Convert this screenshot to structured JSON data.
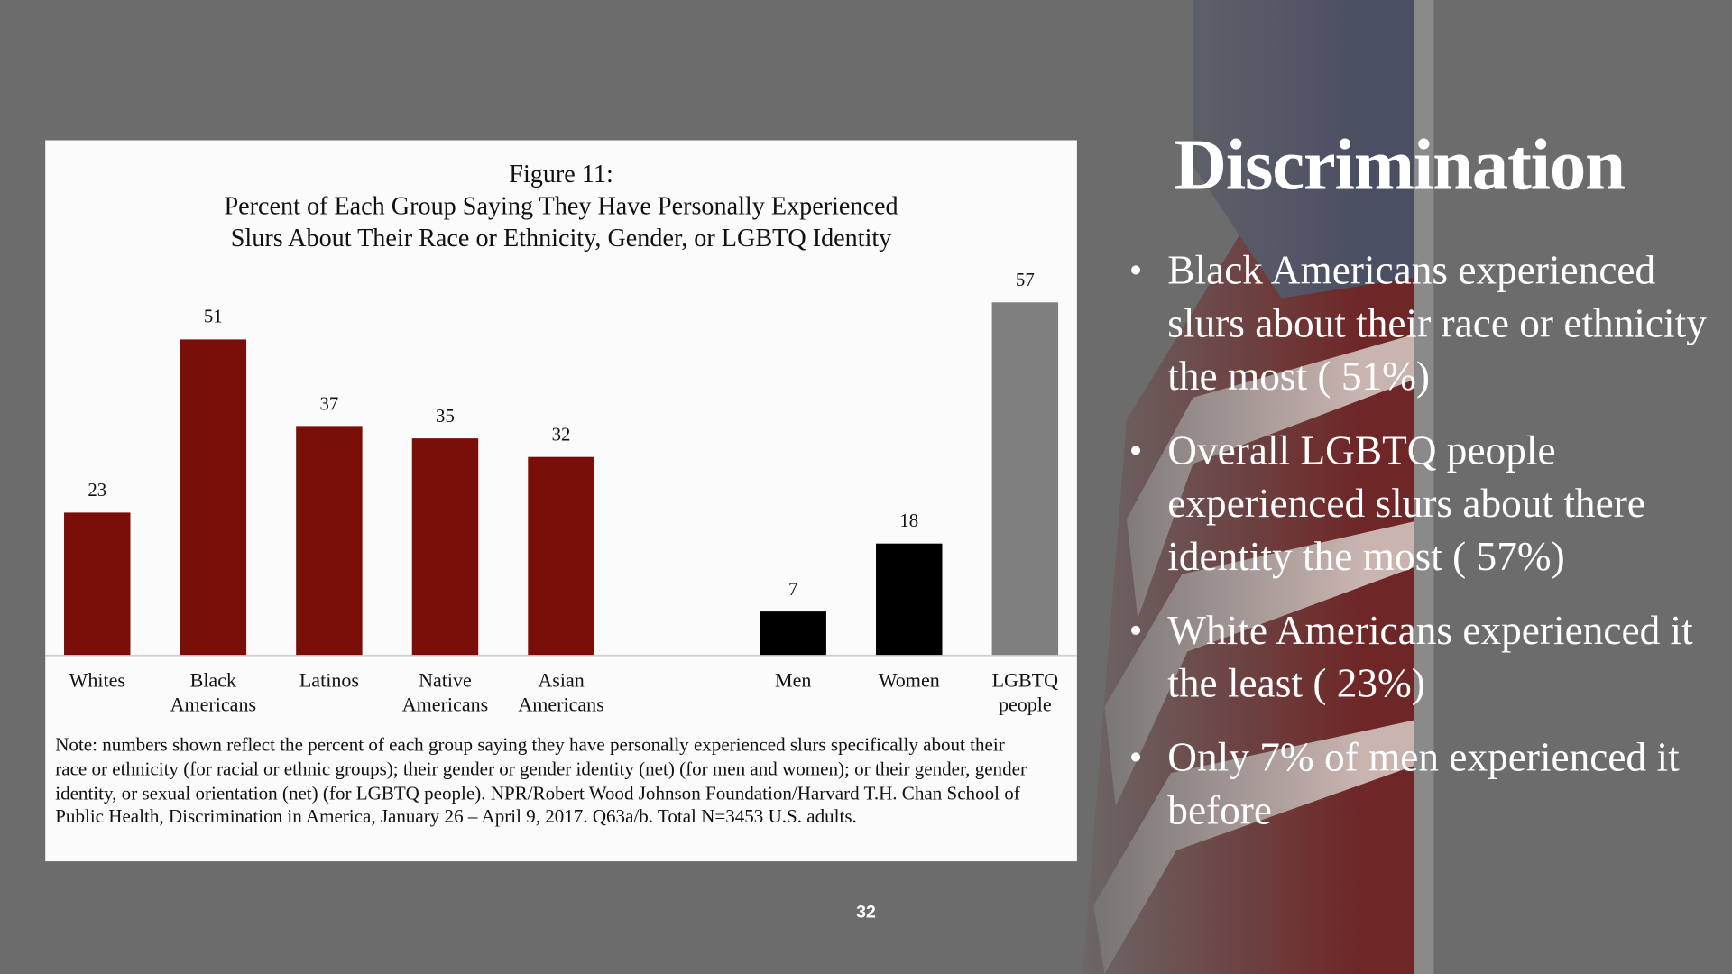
{
  "slide": {
    "title": "Discrimination",
    "bullets": [
      "Black Americans experienced slurs about their race or ethnicity the most ( 51%)",
      "Overall LGBTQ people experienced slurs about there identity the most ( 57%)",
      "White Americans experienced it the least ( 23%)",
      "Only 7% of men experienced it before"
    ],
    "page_number": "32"
  },
  "chart_data": {
    "type": "bar",
    "title": "Figure 11:",
    "subtitle": [
      "Percent of Each Group Saying They Have Personally Experienced",
      "Slurs About Their Race or Ethnicity, Gender, or LGBTQ Identity"
    ],
    "categories": [
      "Whites",
      "Black Americans",
      "Latinos",
      "Native Americans",
      "Asian Americans",
      null,
      "Men",
      "Women",
      "LGBTQ people"
    ],
    "values": [
      23,
      51,
      37,
      35,
      32,
      null,
      7,
      18,
      57
    ],
    "colors": [
      "#7a0f0a",
      "#7a0f0a",
      "#7a0f0a",
      "#7a0f0a",
      "#7a0f0a",
      null,
      "#000000",
      "#000000",
      "#7f7f7f"
    ],
    "ylim": [
      0,
      60
    ],
    "note": "Note: numbers shown reflect the percent of each group saying they have personally experienced slurs specifically about their race or ethnicity (for racial or ethnic groups); their gender or gender identity (net) (for men and women); or their gender, gender identity, or sexual orientation (net) (for LGBTQ people). NPR/Robert Wood Johnson Foundation/Harvard T.H. Chan School of Public Health, Discrimination in America, January 26 – April 9, 2017. Q63a/b. Total N=3453 U.S. adults."
  }
}
